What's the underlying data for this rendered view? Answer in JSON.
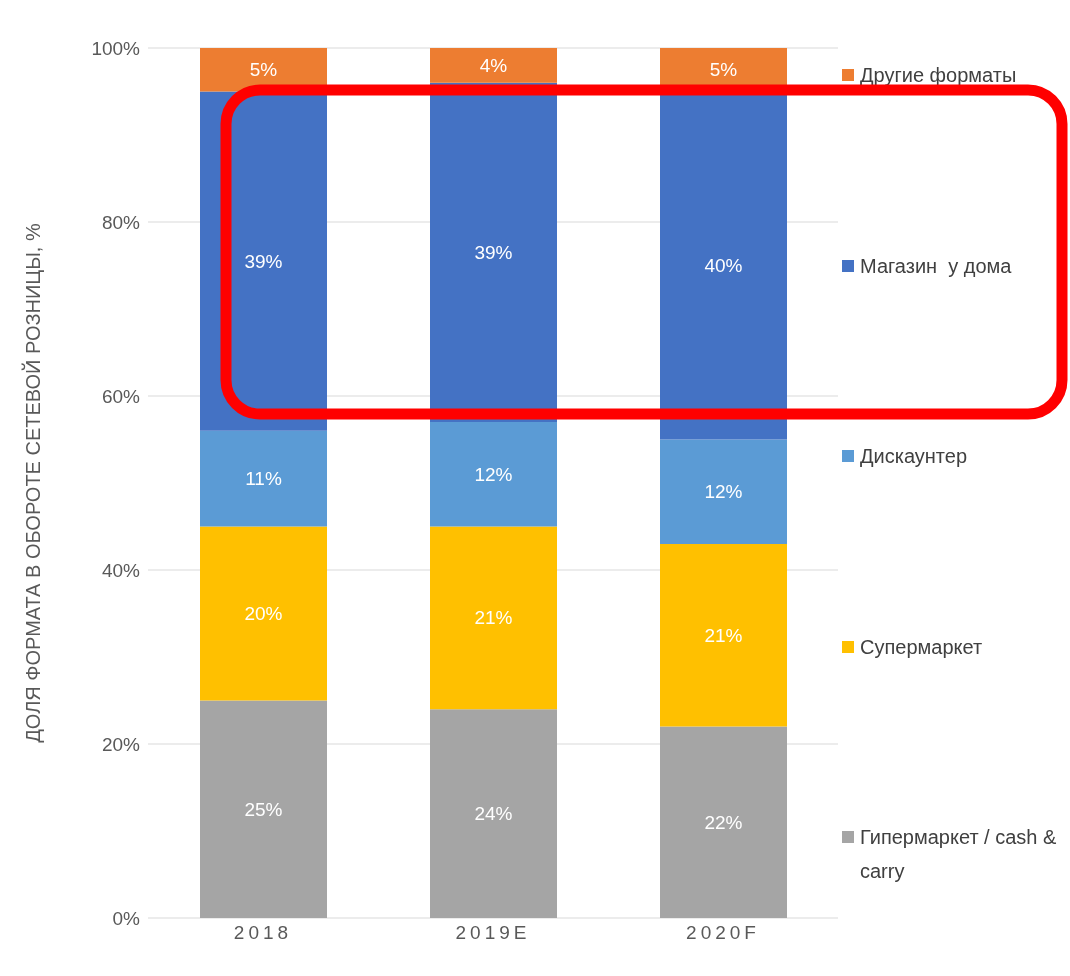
{
  "chart_data": {
    "type": "bar",
    "stacked": true,
    "ylabel": "ДОЛЯ ФОРМАТА В ОБОРОТЕ СЕТЕВОЙ РОЗНИЦЫ, %",
    "categories": [
      "2018",
      "2019E",
      "2020F"
    ],
    "series": [
      {
        "name": "Гипермаркет / cash & carry",
        "color": "#a5a5a5",
        "values": [
          25,
          24,
          22
        ],
        "value_labels": [
          "25%",
          "24%",
          "22%"
        ]
      },
      {
        "name": "Супермаркет",
        "color": "#ffc000",
        "values": [
          20,
          21,
          21
        ],
        "value_labels": [
          "20%",
          "21%",
          "21%"
        ]
      },
      {
        "name": "Дискаунтер",
        "color": "#5b9bd5",
        "values": [
          11,
          12,
          12
        ],
        "value_labels": [
          "11%",
          "12%",
          "12%"
        ]
      },
      {
        "name": "Магазин  у дома",
        "color": "#4472c4",
        "values": [
          39,
          39,
          40
        ],
        "value_labels": [
          "39%",
          "39%",
          "40%"
        ]
      },
      {
        "name": "Другие форматы",
        "color": "#ed7d31",
        "values": [
          5,
          4,
          5
        ],
        "value_labels": [
          "5%",
          "4%",
          "5%"
        ]
      }
    ],
    "ylim": [
      0,
      100
    ],
    "yticks": [
      {
        "value": 0,
        "label": "0%"
      },
      {
        "value": 20,
        "label": "20%"
      },
      {
        "value": 40,
        "label": "40%"
      },
      {
        "value": 60,
        "label": "60%"
      },
      {
        "value": 80,
        "label": "80%"
      },
      {
        "value": 100,
        "label": "100%"
      }
    ],
    "grid": "y",
    "legend": "right"
  }
}
